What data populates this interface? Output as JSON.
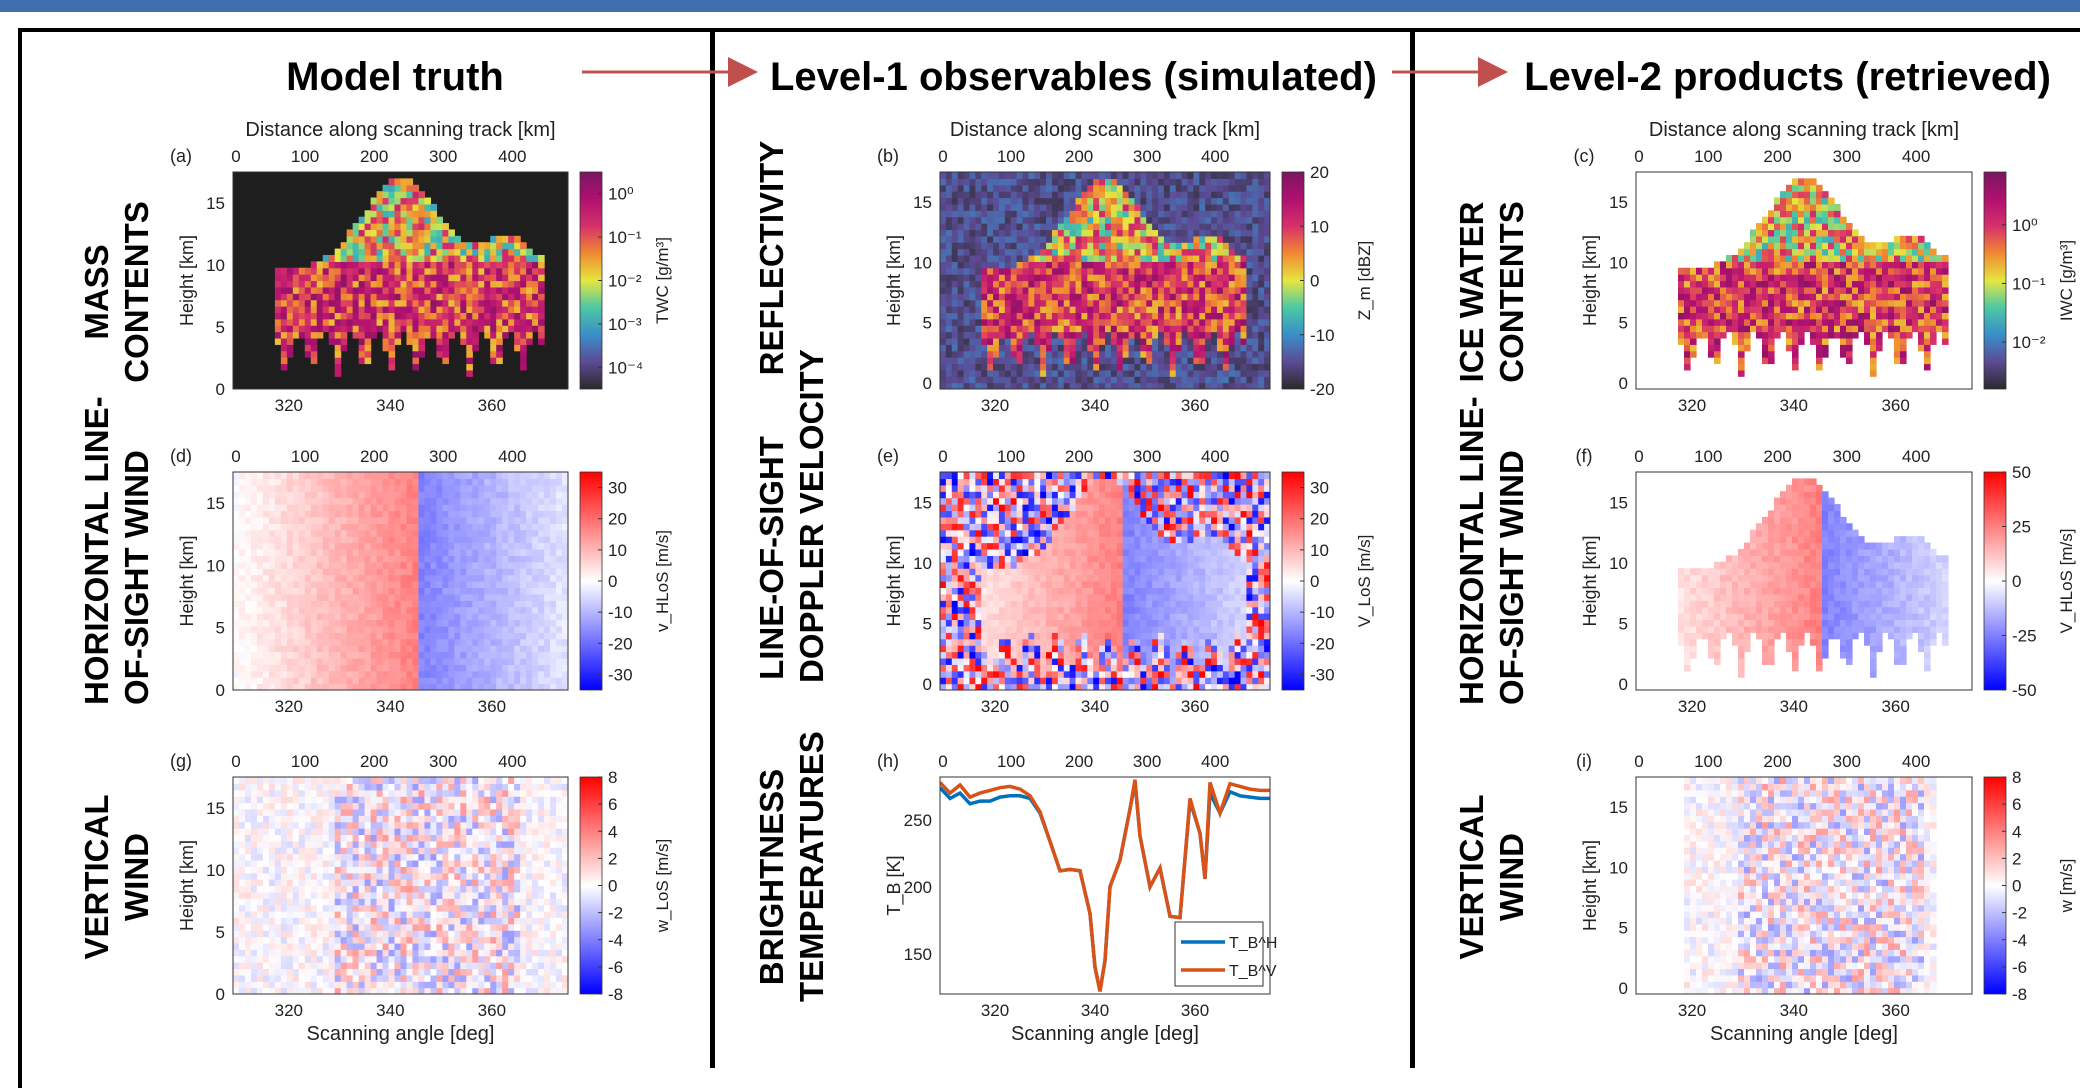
{
  "columns": [
    {
      "title": "Model truth"
    },
    {
      "title": "Level-1 observables (simulated)"
    },
    {
      "title": "Level-2 products (retrieved)"
    }
  ],
  "row_labels": {
    "a": [
      "MASS",
      "CONTENTS"
    ],
    "d": [
      "HORIZONTAL LINE-",
      "OF-SIGHT WIND"
    ],
    "g": [
      "VERTICAL",
      "WIND"
    ],
    "b": [
      "REFLECTIVITY"
    ],
    "e": [
      "LINE-OF-SIGHT",
      "DOPPLER VELOCITY"
    ],
    "h": [
      "BRIGHTNESS",
      "TEMPERATURES"
    ],
    "c": [
      "ICE WATER",
      "CONTENTS"
    ],
    "f": [
      "HORIZONTAL LINE-",
      "OF-SIGHT WIND"
    ],
    "i": [
      "VERTICAL",
      "WIND"
    ]
  },
  "colors": {
    "arrow": "#c0504d",
    "topbar": "#3f6fb0",
    "tb_h": "#0072bd",
    "tb_v": "#d95319"
  },
  "chart_data": [
    {
      "panel": "(a)",
      "type": "heatmap",
      "top_xlabel": "Distance along scanning track [km]",
      "top_ticks": [
        "0",
        "100",
        "200",
        "300",
        "400"
      ],
      "top_tick_values": [
        0,
        100,
        200,
        300,
        400
      ],
      "xticks": [
        "320",
        "340",
        "360"
      ],
      "xtick_values": [
        320,
        340,
        360
      ],
      "xlim": [
        309,
        375
      ],
      "ylabel": "Height [km]",
      "yticks": [
        "0",
        "5",
        "10",
        "15"
      ],
      "ylim": [
        0,
        17.5
      ],
      "colorbar": {
        "label": "TWC [g/m³]",
        "scale": "log",
        "ticks": [
          "10⁰",
          "10⁻¹",
          "10⁻²",
          "10⁻³",
          "10⁻⁴"
        ],
        "tick_values": [
          0,
          -1,
          -2,
          -3,
          -4
        ],
        "range": [
          -4.5,
          0.5
        ],
        "colormap": [
          "#2a2a2a",
          "#5c4a94",
          "#3a8ec9",
          "#4cc8a4",
          "#e6e640",
          "#f08a30",
          "#d6306a",
          "#b01070",
          "#7a1660"
        ]
      }
    },
    {
      "panel": "(d)",
      "type": "heatmap",
      "top_ticks": [
        "0",
        "100",
        "200",
        "300",
        "400"
      ],
      "top_tick_values": [
        0,
        100,
        200,
        300,
        400
      ],
      "xticks": [
        "320",
        "340",
        "360"
      ],
      "xtick_values": [
        320,
        340,
        360
      ],
      "xlim": [
        309,
        375
      ],
      "ylabel": "Height [km]",
      "yticks": [
        "0",
        "5",
        "10",
        "15"
      ],
      "ylim": [
        0,
        17.5
      ],
      "colorbar": {
        "label": "v_HLoS [m/s]",
        "scale": "linear",
        "ticks": [
          "30",
          "20",
          "10",
          "0",
          "-10",
          "-20",
          "-30"
        ],
        "tick_values": [
          30,
          20,
          10,
          0,
          -10,
          -20,
          -30
        ],
        "range": [
          -35,
          35
        ],
        "colormap": [
          "#0000ff",
          "#ffffff",
          "#ff0000"
        ]
      }
    },
    {
      "panel": "(g)",
      "type": "heatmap",
      "top_ticks": [
        "0",
        "100",
        "200",
        "300",
        "400"
      ],
      "top_tick_values": [
        0,
        100,
        200,
        300,
        400
      ],
      "xticks": [
        "320",
        "340",
        "360"
      ],
      "xtick_values": [
        320,
        340,
        360
      ],
      "xlim": [
        309,
        375
      ],
      "xlabel": "Scanning angle [deg]",
      "ylabel": "Height [km]",
      "yticks": [
        "0",
        "5",
        "10",
        "15"
      ],
      "ylim": [
        0,
        17.5
      ],
      "colorbar": {
        "label": "w_LoS [m/s]",
        "scale": "linear",
        "ticks": [
          "8",
          "6",
          "4",
          "2",
          "0",
          "-2",
          "-4",
          "-6",
          "-8"
        ],
        "tick_values": [
          8,
          6,
          4,
          2,
          0,
          -2,
          -4,
          -6,
          -8
        ],
        "range": [
          -8,
          8
        ],
        "colormap": [
          "#0000ff",
          "#ffffff",
          "#ff0000"
        ]
      }
    },
    {
      "panel": "(b)",
      "type": "heatmap",
      "top_xlabel": "Distance along scanning track [km]",
      "top_ticks": [
        "0",
        "100",
        "200",
        "300",
        "400"
      ],
      "top_tick_values": [
        0,
        100,
        200,
        300,
        400
      ],
      "xticks": [
        "320",
        "340",
        "360"
      ],
      "xtick_values": [
        320,
        340,
        360
      ],
      "xlim": [
        309,
        375
      ],
      "ylabel": "Height [km]",
      "yticks": [
        "0",
        "5",
        "10",
        "15"
      ],
      "ylim": [
        -0.5,
        17.5
      ],
      "colorbar": {
        "label": "Z_m [dBZ]",
        "scale": "linear",
        "ticks": [
          "20",
          "10",
          "0",
          "-10",
          "-20"
        ],
        "tick_values": [
          20,
          10,
          0,
          -10,
          -20
        ],
        "range": [
          -20,
          20
        ],
        "colormap": [
          "#2a2a2a",
          "#5c4a94",
          "#3a8ec9",
          "#4cc8a4",
          "#e6e640",
          "#f08a30",
          "#d6306a",
          "#b01070",
          "#7a1660"
        ]
      }
    },
    {
      "panel": "(e)",
      "type": "heatmap",
      "top_ticks": [
        "0",
        "100",
        "200",
        "300",
        "400"
      ],
      "top_tick_values": [
        0,
        100,
        200,
        300,
        400
      ],
      "xticks": [
        "320",
        "340",
        "360"
      ],
      "xtick_values": [
        320,
        340,
        360
      ],
      "xlim": [
        309,
        375
      ],
      "ylabel": "Height [km]",
      "yticks": [
        "0",
        "5",
        "10",
        "15"
      ],
      "ylim": [
        -0.5,
        17.5
      ],
      "colorbar": {
        "label": "V_LoS [m/s]",
        "scale": "linear",
        "ticks": [
          "30",
          "20",
          "10",
          "0",
          "-10",
          "-20",
          "-30"
        ],
        "tick_values": [
          30,
          20,
          10,
          0,
          -10,
          -20,
          -30
        ],
        "range": [
          -35,
          35
        ],
        "colormap": [
          "#0000ff",
          "#ffffff",
          "#ff0000"
        ]
      }
    },
    {
      "panel": "(h)",
      "type": "line",
      "top_ticks": [
        "0",
        "100",
        "200",
        "300",
        "400"
      ],
      "top_tick_values": [
        0,
        100,
        200,
        300,
        400
      ],
      "xticks": [
        "320",
        "340",
        "360"
      ],
      "xtick_values": [
        320,
        340,
        360
      ],
      "xlim": [
        309,
        375
      ],
      "xlabel": "Scanning angle [deg]",
      "ylabel": "T_B [K]",
      "yticks": [
        "150",
        "200",
        "250"
      ],
      "ytick_values": [
        150,
        200,
        250
      ],
      "ylim": [
        120,
        282
      ],
      "legend_position": "bottom-right",
      "x": [
        309,
        311,
        313,
        315,
        317,
        319,
        321,
        323,
        325,
        327,
        329,
        331,
        333,
        335,
        337,
        339,
        340,
        341,
        342,
        343,
        345,
        347,
        348,
        349,
        351,
        353,
        355,
        357,
        359,
        361,
        362,
        363,
        365,
        367,
        369,
        371,
        373,
        375
      ],
      "series": [
        {
          "name": "T_B^H",
          "values": [
            274,
            266,
            270,
            262,
            264,
            264,
            267,
            268,
            268,
            266,
            255,
            234,
            212,
            213,
            212,
            180,
            140,
            122,
            145,
            200,
            220,
            258,
            278,
            238,
            200,
            214,
            178,
            177,
            264,
            240,
            206,
            270,
            255,
            271,
            268,
            267,
            266,
            266
          ]
        },
        {
          "name": "T_B^V",
          "values": [
            278,
            270,
            276,
            267,
            270,
            272,
            274,
            275,
            273,
            268,
            256,
            234,
            212,
            213,
            212,
            180,
            140,
            122,
            145,
            200,
            220,
            258,
            280,
            238,
            200,
            214,
            178,
            177,
            266,
            240,
            206,
            278,
            255,
            277,
            275,
            273,
            272,
            272
          ]
        }
      ]
    },
    {
      "panel": "(c)",
      "type": "heatmap",
      "top_xlabel": "Distance along scanning track [km]",
      "top_ticks": [
        "0",
        "100",
        "200",
        "300",
        "400"
      ],
      "top_tick_values": [
        0,
        100,
        200,
        300,
        400
      ],
      "xticks": [
        "320",
        "340",
        "360"
      ],
      "xtick_values": [
        320,
        340,
        360
      ],
      "xlim": [
        309,
        375
      ],
      "ylabel": "Height [km]",
      "yticks": [
        "0",
        "5",
        "10",
        "15"
      ],
      "ylim": [
        -0.5,
        17.5
      ],
      "colorbar": {
        "label": "IWC [g/m³]",
        "scale": "log",
        "ticks": [
          "10⁰",
          "10⁻¹",
          "10⁻²"
        ],
        "tick_values": [
          0,
          -1,
          -2
        ],
        "range": [
          -2.8,
          0.9
        ],
        "colormap": [
          "#2a2a2a",
          "#5c4a94",
          "#3a8ec9",
          "#4cc8a4",
          "#e6e640",
          "#f08a30",
          "#d6306a",
          "#b01070",
          "#7a1660"
        ]
      }
    },
    {
      "panel": "(f)",
      "type": "heatmap",
      "top_ticks": [
        "0",
        "100",
        "200",
        "300",
        "400"
      ],
      "top_tick_values": [
        0,
        100,
        200,
        300,
        400
      ],
      "xticks": [
        "320",
        "340",
        "360"
      ],
      "xtick_values": [
        320,
        340,
        360
      ],
      "xlim": [
        309,
        375
      ],
      "ylabel": "Height [km]",
      "yticks": [
        "0",
        "5",
        "10",
        "15"
      ],
      "ylim": [
        -0.5,
        17.5
      ],
      "colorbar": {
        "label": "V_HLoS [m/s]",
        "scale": "linear",
        "ticks": [
          "50",
          "25",
          "0",
          "-25",
          "-50"
        ],
        "tick_values": [
          50,
          25,
          0,
          -25,
          -50
        ],
        "range": [
          -50,
          50
        ],
        "colormap": [
          "#0000ff",
          "#ffffff",
          "#ff0000"
        ]
      }
    },
    {
      "panel": "(i)",
      "type": "heatmap",
      "top_ticks": [
        "0",
        "100",
        "200",
        "300",
        "400"
      ],
      "top_tick_values": [
        0,
        100,
        200,
        300,
        400
      ],
      "xticks": [
        "320",
        "340",
        "360"
      ],
      "xtick_values": [
        320,
        340,
        360
      ],
      "xlim": [
        309,
        375
      ],
      "xlabel": "Scanning angle [deg]",
      "ylabel": "Height [km]",
      "yticks": [
        "0",
        "5",
        "10",
        "15"
      ],
      "ylim": [
        -0.5,
        17.5
      ],
      "colorbar": {
        "label": "w [m/s]",
        "scale": "linear",
        "ticks": [
          "8",
          "6",
          "4",
          "2",
          "0",
          "-2",
          "-4",
          "-6",
          "-8"
        ],
        "tick_values": [
          8,
          6,
          4,
          2,
          0,
          -2,
          -4,
          -6,
          -8
        ],
        "range": [
          -8,
          8
        ],
        "colormap": [
          "#0000ff",
          "#ffffff",
          "#ff0000"
        ]
      }
    }
  ]
}
